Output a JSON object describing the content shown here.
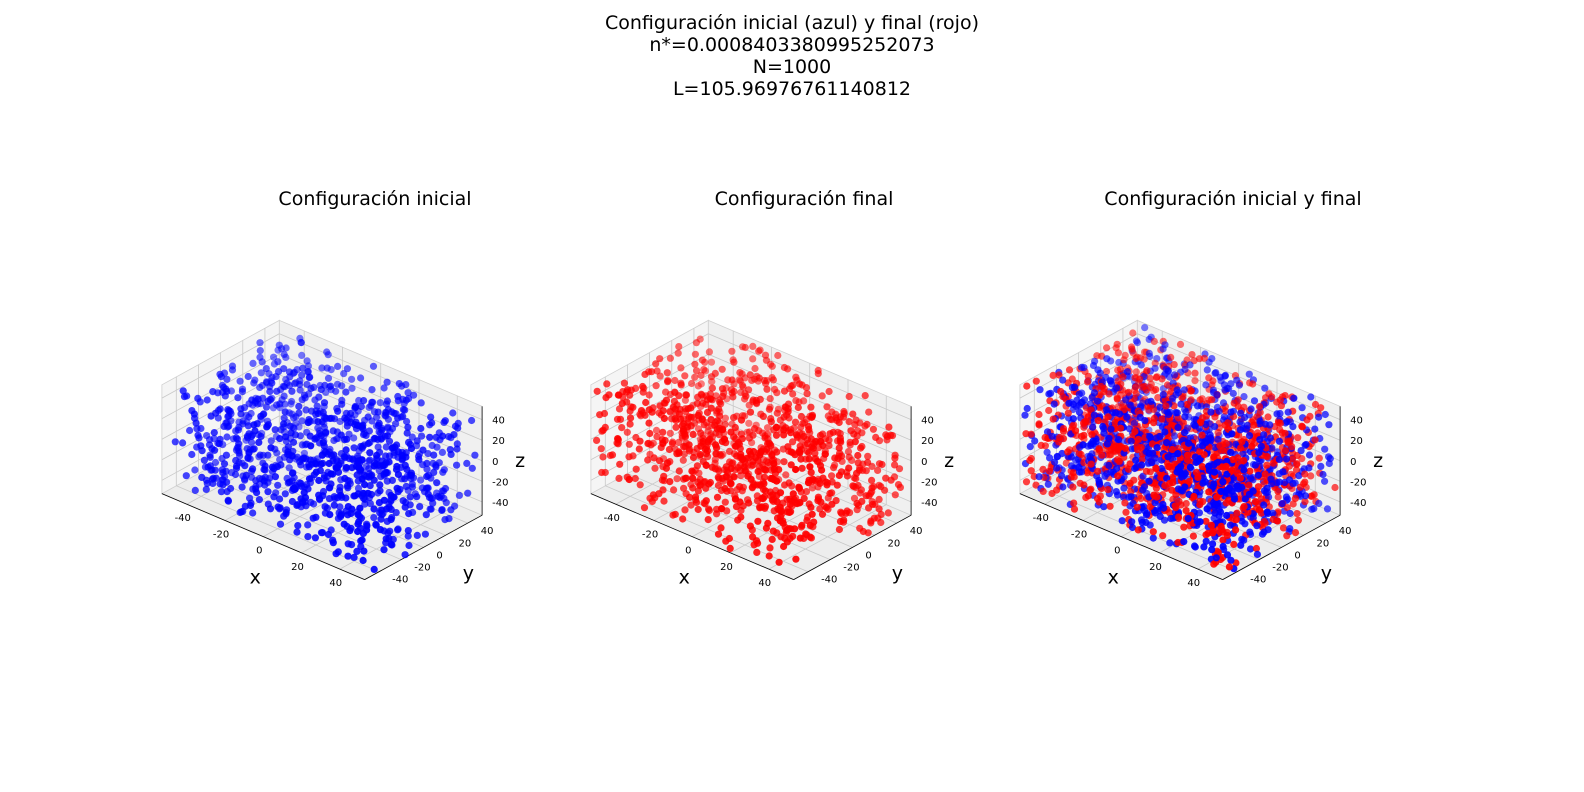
{
  "figure": {
    "suptitle": [
      "Configuración inicial (azul) y final (rojo)",
      "n*=0.0008403380995252073",
      "N=1000",
      "L=105.96976761140812"
    ]
  },
  "colors": {
    "initial": "#0000ff",
    "final": "#ff0000"
  },
  "chart_data": [
    {
      "type": "scatter",
      "projection": "3d",
      "title": "Configuración inicial",
      "xlabel": "x",
      "ylabel": "y",
      "zlabel": "z",
      "xticks": [
        -40,
        -20,
        0,
        20,
        40
      ],
      "yticks": [
        -40,
        -20,
        0,
        20,
        40
      ],
      "zticks": [
        -40,
        -20,
        0,
        20,
        40
      ],
      "xlim": [
        -53,
        53
      ],
      "ylim": [
        -53,
        53
      ],
      "zlim": [
        -53,
        53
      ],
      "grid": true,
      "series": [
        {
          "color": "#0000ff",
          "count": 1000,
          "distribution": "uniform in cube [-53, 53]^3"
        }
      ]
    },
    {
      "type": "scatter",
      "projection": "3d",
      "title": "Configuración final",
      "xlabel": "x",
      "ylabel": "y",
      "zlabel": "z",
      "xticks": [
        -40,
        -20,
        0,
        20,
        40
      ],
      "yticks": [
        -40,
        -20,
        0,
        20,
        40
      ],
      "zticks": [
        -40,
        -20,
        0,
        20,
        40
      ],
      "xlim": [
        -53,
        53
      ],
      "ylim": [
        -53,
        53
      ],
      "zlim": [
        -53,
        53
      ],
      "grid": true,
      "series": [
        {
          "color": "#ff0000",
          "count": 1000,
          "distribution": "uniform in cube [-53, 53]^3"
        }
      ]
    },
    {
      "type": "scatter",
      "projection": "3d",
      "title": "Configuración inicial y final",
      "xlabel": "x",
      "ylabel": "y",
      "zlabel": "z",
      "xticks": [
        -40,
        -20,
        0,
        20,
        40
      ],
      "yticks": [
        -40,
        -20,
        0,
        20,
        40
      ],
      "zticks": [
        -40,
        -20,
        0,
        20,
        40
      ],
      "xlim": [
        -53,
        53
      ],
      "ylim": [
        -53,
        53
      ],
      "zlim": [
        -53,
        53
      ],
      "grid": true,
      "series": [
        {
          "color": "#0000ff",
          "count": 1000,
          "distribution": "uniform in cube [-53, 53]^3"
        },
        {
          "color": "#ff0000",
          "count": 1000,
          "distribution": "uniform in cube [-53, 53]^3"
        }
      ]
    }
  ]
}
